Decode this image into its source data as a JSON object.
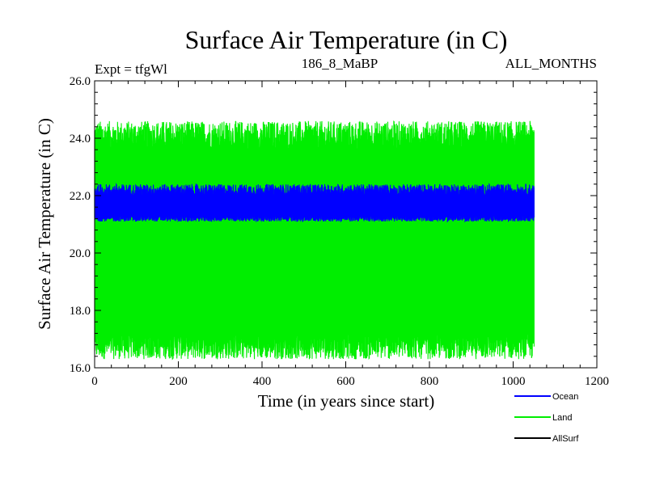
{
  "chart_data": {
    "type": "line",
    "title": "Surface Air Temperature (in C)",
    "subtitle_left": "Expt = tfgWl",
    "subtitle_center": "186_8_MaBP",
    "subtitle_right": "ALL_MONTHS",
    "xlabel": "Time (in years since start)",
    "ylabel": "Surface Air Temperature (in C)",
    "xlim": [
      0,
      1200
    ],
    "ylim": [
      16.0,
      26.0
    ],
    "xticks": [
      0,
      200,
      400,
      600,
      800,
      1000,
      1200
    ],
    "xtick_labels": [
      "0",
      "200",
      "400",
      "600",
      "800",
      "1000",
      "1200"
    ],
    "yticks": [
      16.0,
      18.0,
      20.0,
      22.0,
      24.0,
      26.0
    ],
    "ytick_labels": [
      "16.0",
      "18.0",
      "20.0",
      "22.0",
      "24.0",
      "26.0"
    ],
    "x_end": 1050,
    "series": [
      {
        "name": "Land",
        "color": "#00ee00",
        "low_band": [
          16.3,
          17.2
        ],
        "high_band": [
          23.6,
          24.6
        ],
        "mean": 20.5
      },
      {
        "name": "Ocean",
        "color": "#0000ff",
        "low_band": [
          21.1,
          21.3
        ],
        "high_band": [
          22.0,
          22.4
        ],
        "mean": 21.7
      },
      {
        "name": "AllSurf",
        "color": "#000000",
        "values": []
      }
    ],
    "legend": {
      "placement": "bottom-right",
      "entries": [
        {
          "label": "Ocean",
          "color": "#0000ff"
        },
        {
          "label": "Land",
          "color": "#00ee00"
        },
        {
          "label": "AllSurf",
          "color": "#000000"
        }
      ]
    }
  }
}
